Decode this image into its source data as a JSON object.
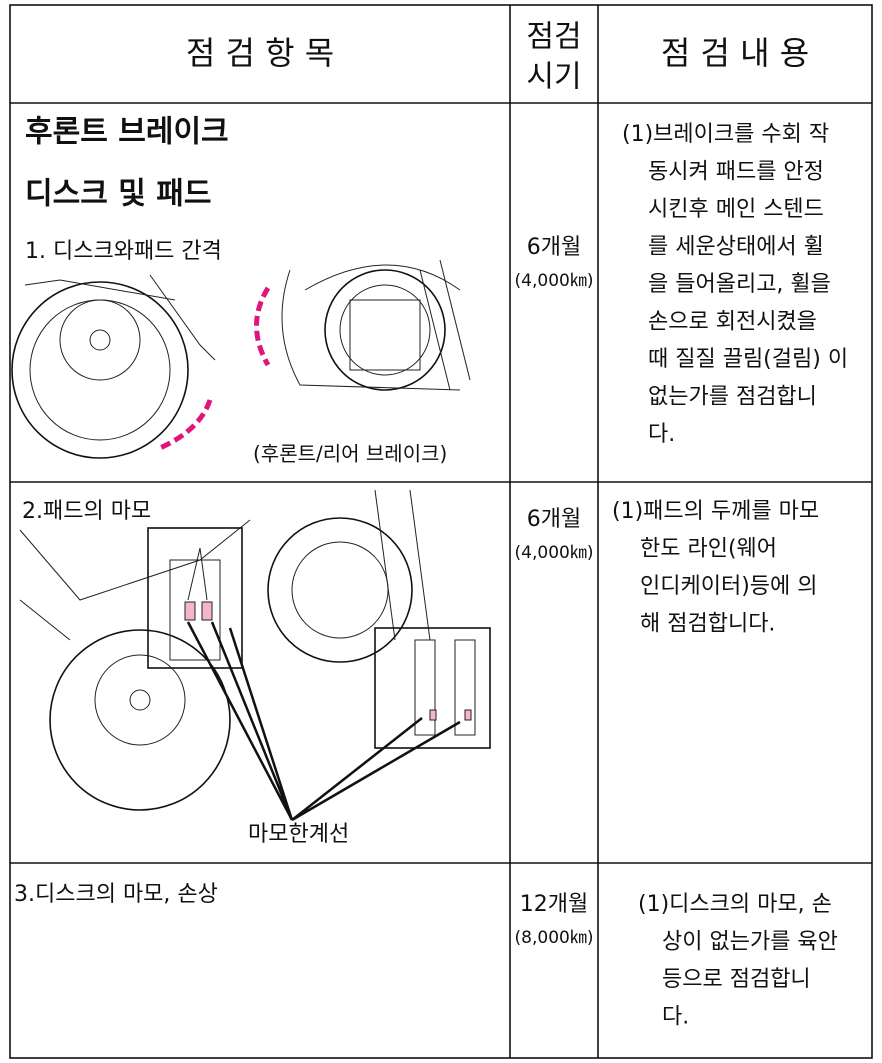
{
  "header": {
    "item": "점 검 항 목",
    "period": [
      "점검",
      "시기"
    ],
    "content": "점 검 내 용"
  },
  "rows": [
    {
      "title": [
        "후론트 브레이크",
        "디스크 및 패드"
      ],
      "label": "1. 디스크와패드 간격",
      "caption": "(후론트/리어 브레이크)",
      "period": "6개월",
      "distance": "(4,000㎞)",
      "content": [
        "(1)브레이크를 수회 작",
        "동시켜 패드를 안정",
        "시킨후 메인 스텐드",
        "를 세운상태에서 휠",
        "을 들어올리고, 휠을",
        "손으로 회전시켰을",
        "때 질질 끌림(걸림) 이",
        "없는가를 점검합니",
        "다."
      ]
    },
    {
      "label": "2.패드의 마모",
      "caption": "마모한계선",
      "period": "6개월",
      "distance": "(4,000㎞)",
      "content": [
        "(1)패드의 두께를 마모",
        "한도 라인(웨어",
        "인디케이터)등에 의",
        "해 점검합니다."
      ]
    },
    {
      "label": "3.디스크의 마모, 손상",
      "period": "12개월",
      "distance": "(8,000㎞)",
      "content": [
        "(1)디스크의 마모, 손",
        "상이 없는가를 육안",
        "등으로 점검합니",
        "다."
      ]
    }
  ]
}
